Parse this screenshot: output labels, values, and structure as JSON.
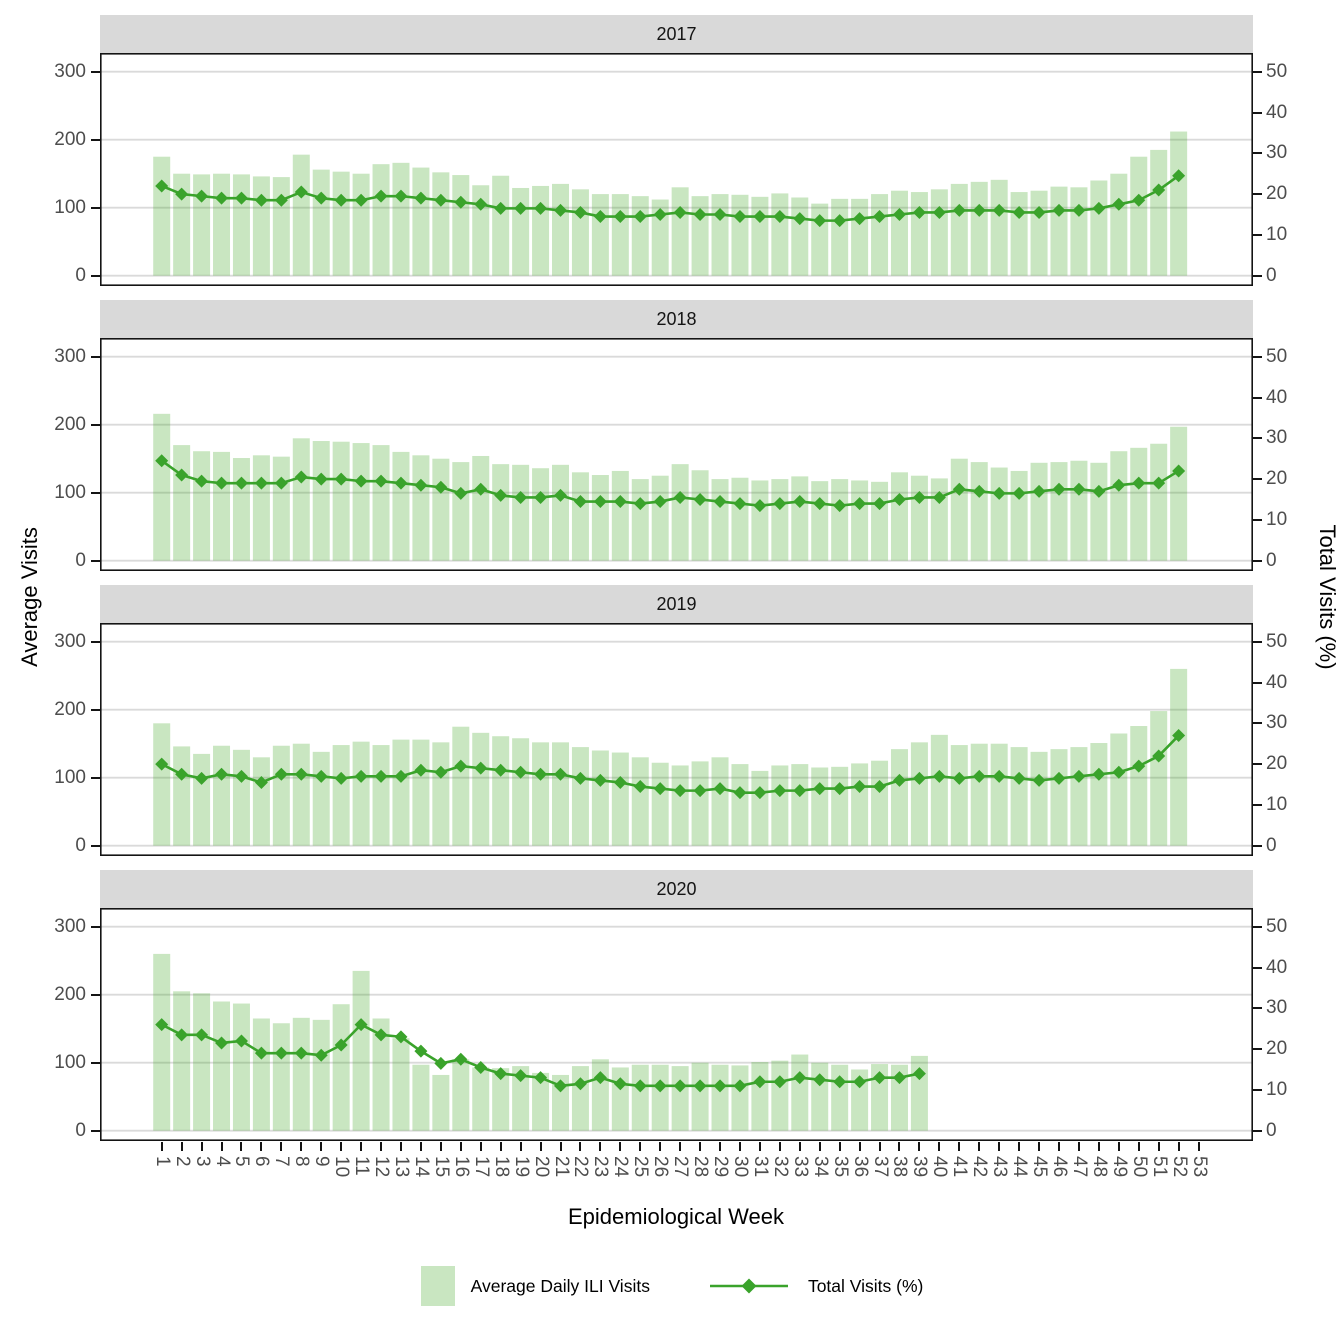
{
  "figure": {
    "xlabel": "Epidemiological Week",
    "ylabel_left": "Average Visits",
    "ylabel_right": "Total Visits (%)"
  },
  "axes": {
    "left": {
      "title": "Average Visits",
      "ticks": [
        0,
        100,
        200,
        300
      ],
      "range": [
        0,
        300
      ]
    },
    "right": {
      "title": "Total Visits (%)",
      "ticks": [
        0,
        10,
        20,
        30,
        40,
        50
      ],
      "range": [
        0,
        50
      ]
    },
    "x": {
      "title": "Epidemiological Week",
      "ticks": [
        1,
        2,
        3,
        4,
        5,
        6,
        7,
        8,
        9,
        10,
        11,
        12,
        13,
        14,
        15,
        16,
        17,
        18,
        19,
        20,
        21,
        22,
        23,
        24,
        25,
        26,
        27,
        28,
        29,
        30,
        31,
        32,
        33,
        34,
        35,
        36,
        37,
        38,
        39,
        40,
        41,
        42,
        43,
        44,
        45,
        46,
        47,
        48,
        49,
        50,
        51,
        52,
        53
      ]
    }
  },
  "legend": {
    "items": [
      {
        "label": "Average Daily ILI Visits",
        "swatch": "bar"
      },
      {
        "label": "Total Visits (%)",
        "swatch": "line"
      }
    ]
  },
  "colors": {
    "bar_fill": "rgba(70,170,40,0.29)",
    "bar_fill_flat": "#c9e6c0",
    "line": "#3aa32b",
    "gridline": "#dadada",
    "strip_bg": "#d9d9d9",
    "axis_text": "#4d4d4d",
    "panel_border": "#141414"
  },
  "chart_data": [
    {
      "facet": "2017",
      "type": "bar+line",
      "week_start": 1,
      "bar_series": "Average Daily ILI Visits (left axis, 0-300)",
      "line_series": "Total Visits % (right axis, 0-50)",
      "bars": [
        175,
        150,
        149,
        150,
        149,
        146,
        145,
        178,
        156,
        153,
        150,
        164,
        166,
        159,
        152,
        148,
        133,
        147,
        129,
        132,
        135,
        127,
        120,
        120,
        117,
        112,
        130,
        117,
        120,
        119,
        116,
        121,
        115,
        106,
        113,
        113,
        120,
        125,
        123,
        127,
        135,
        138,
        141,
        123,
        125,
        131,
        130,
        140,
        150,
        175,
        185,
        212
      ],
      "line": [
        22,
        20,
        19.5,
        19,
        19,
        18.5,
        18.5,
        20.5,
        19,
        18.5,
        18.5,
        19.5,
        19.5,
        19,
        18.5,
        18,
        17.5,
        16.5,
        16.5,
        16.5,
        16,
        15.5,
        14.5,
        14.5,
        14.5,
        15,
        15.5,
        15,
        15,
        14.5,
        14.5,
        14.5,
        14,
        13.5,
        13.5,
        14,
        14.5,
        15,
        15.5,
        15.5,
        16,
        16,
        16,
        15.5,
        15.5,
        16,
        16,
        16.5,
        17.5,
        18.5,
        21,
        24.5
      ]
    },
    {
      "facet": "2018",
      "type": "bar+line",
      "week_start": 1,
      "bar_series": "Average Daily ILI Visits (left axis, 0-300)",
      "line_series": "Total Visits % (right axis, 0-50)",
      "bars": [
        216,
        170,
        161,
        160,
        151,
        155,
        153,
        180,
        176,
        175,
        173,
        170,
        160,
        155,
        150,
        145,
        154,
        142,
        141,
        136,
        141,
        130,
        126,
        132,
        120,
        125,
        142,
        133,
        120,
        122,
        118,
        120,
        124,
        117,
        120,
        118,
        116,
        130,
        125,
        121,
        150,
        145,
        137,
        132,
        144,
        145,
        147,
        144,
        161,
        166,
        172,
        197
      ],
      "line": [
        24.5,
        21,
        19.5,
        19,
        19,
        19,
        19,
        20.5,
        20,
        20,
        19.5,
        19.5,
        19,
        18.5,
        18,
        16.5,
        17.5,
        16,
        15.5,
        15.5,
        16,
        14.5,
        14.5,
        14.5,
        14,
        14.5,
        15.5,
        15,
        14.5,
        14,
        13.5,
        14,
        14.5,
        14,
        13.5,
        14,
        14,
        15,
        15.5,
        15.5,
        17.5,
        17,
        16.5,
        16.5,
        17,
        17.5,
        17.5,
        17,
        18.5,
        19,
        19,
        22
      ]
    },
    {
      "facet": "2019",
      "type": "bar+line",
      "week_start": 1,
      "bar_series": "Average Daily ILI Visits (left axis, 0-300)",
      "line_series": "Total Visits % (right axis, 0-50)",
      "bars": [
        180,
        146,
        135,
        147,
        141,
        130,
        147,
        150,
        138,
        148,
        153,
        148,
        156,
        156,
        152,
        175,
        166,
        161,
        158,
        152,
        152,
        145,
        140,
        137,
        130,
        122,
        118,
        124,
        130,
        120,
        110,
        118,
        120,
        115,
        116,
        121,
        125,
        142,
        152,
        163,
        148,
        150,
        150,
        145,
        138,
        142,
        145,
        151,
        165,
        176,
        198,
        260
      ],
      "line": [
        20,
        17.5,
        16.5,
        17.5,
        17,
        15.5,
        17.5,
        17.5,
        17,
        16.5,
        17,
        17,
        17,
        18.5,
        18,
        19.5,
        19,
        18.5,
        18,
        17.5,
        17.5,
        16.5,
        16,
        15.5,
        14.5,
        14,
        13.5,
        13.5,
        14,
        13,
        13,
        13.5,
        13.5,
        14,
        14,
        14.5,
        14.5,
        16,
        16.5,
        17,
        16.5,
        17,
        17,
        16.5,
        16,
        16.5,
        17,
        17.5,
        18,
        19.5,
        22,
        27
      ]
    },
    {
      "facet": "2020",
      "type": "bar+line",
      "week_start": 1,
      "bar_series": "Average Daily ILI Visits (left axis, 0-300)",
      "line_series": "Total Visits % (right axis, 0-50)",
      "bars": [
        260,
        205,
        202,
        190,
        187,
        165,
        158,
        166,
        163,
        186,
        235,
        165,
        136,
        97,
        82,
        105,
        93,
        92,
        95,
        85,
        82,
        95,
        105,
        93,
        97,
        97,
        95,
        100,
        97,
        96,
        101,
        103,
        112,
        100,
        97,
        90,
        98,
        97,
        110
      ],
      "line": [
        26,
        23.5,
        23.5,
        21.5,
        22,
        19,
        19,
        19,
        18.5,
        21,
        26,
        23.5,
        23,
        19.5,
        16.5,
        17.5,
        15.5,
        14,
        13.5,
        13,
        11,
        11.5,
        13,
        11.5,
        11,
        11,
        11,
        11,
        11,
        11,
        12,
        12,
        13,
        12.5,
        12,
        12,
        13,
        13,
        14
      ]
    }
  ]
}
